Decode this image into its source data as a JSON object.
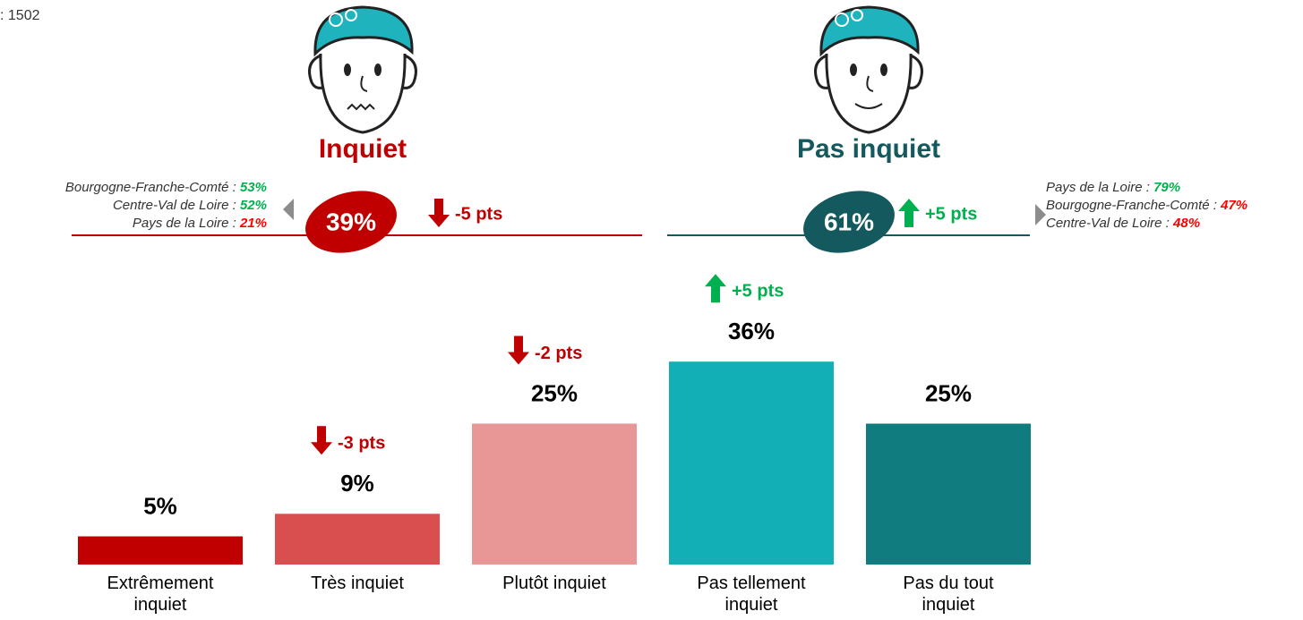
{
  "note": ": 1502",
  "summary": [
    {
      "label": "Inquiet",
      "value": 39,
      "value_label": "39%",
      "change": -5,
      "change_label": "-5 pts",
      "color": "#c00000",
      "regions": [
        {
          "name": "Bourgogne-Franche-Comté :",
          "value": 53,
          "value_label": "53%",
          "color": "#00b050"
        },
        {
          "name": "Centre-Val de Loire :",
          "value": 52,
          "value_label": "52%",
          "color": "#00b050"
        },
        {
          "name": "Pays de la Loire :",
          "value": 21,
          "value_label": "21%",
          "color": "#ff0000"
        }
      ]
    },
    {
      "label": "Pas inquiet",
      "value": 61,
      "value_label": "61%",
      "change": 5,
      "change_label": "+5 pts",
      "color": "#14595e",
      "regions": [
        {
          "name": "Pays de la Loire :",
          "value": 79,
          "value_label": "79%",
          "color": "#00b050"
        },
        {
          "name": "Bourgogne-Franche-Comté :",
          "value": 47,
          "value_label": "47%",
          "color": "#ff0000"
        },
        {
          "name": "Centre-Val de Loire :",
          "value": 48,
          "value_label": "48%",
          "color": "#ff0000"
        }
      ]
    }
  ],
  "chart_data": {
    "type": "bar",
    "categories": [
      "Extrêmement inquiet",
      "Très inquiet",
      "Plutôt inquiet",
      "Pas tellement inquiet",
      "Pas du tout inquiet"
    ],
    "values": [
      5,
      9,
      25,
      36,
      25
    ],
    "value_labels": [
      "5%",
      "9%",
      "25%",
      "36%",
      "25%"
    ],
    "colors": [
      "#c00000",
      "#d94f4f",
      "#e89696",
      "#13afb6",
      "#107c80"
    ],
    "changes": [
      null,
      -3,
      -2,
      5,
      null
    ],
    "change_labels": [
      null,
      "-3 pts",
      "-2 pts",
      "+5 pts",
      null
    ]
  }
}
